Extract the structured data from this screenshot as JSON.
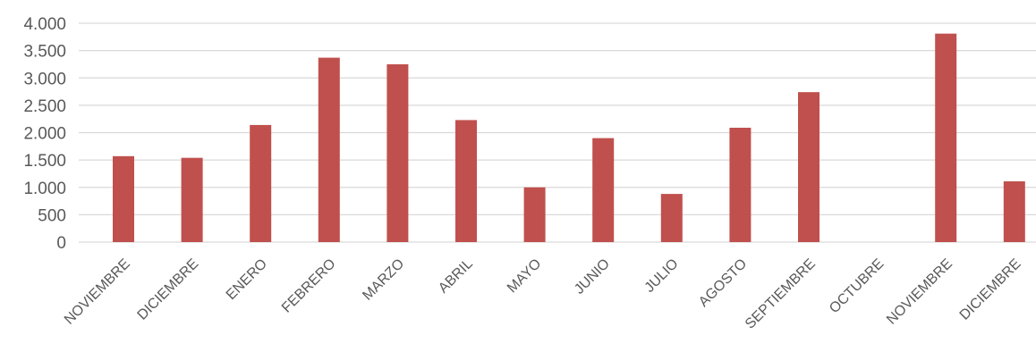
{
  "chart_data": {
    "type": "bar",
    "title": "",
    "xlabel": "",
    "ylabel": "",
    "ylim": [
      0,
      4000
    ],
    "grid": true,
    "legend": "none",
    "color": "#c0504d",
    "categories": [
      "NOVIEMBRE",
      "DICIEMBRE",
      "ENERO",
      "FEBRERO",
      "MARZO",
      "ABRIL",
      "MAYO",
      "JUNIO",
      "JULIO",
      "AGOSTO",
      "SEPTIEMBRE",
      "OCTUBRE",
      "NOVIEMBRE",
      "DICIEMBRE"
    ],
    "values": [
      1570,
      1540,
      2140,
      3370,
      3250,
      2230,
      1000,
      1900,
      880,
      2090,
      2740,
      0,
      3810,
      1110
    ],
    "y_ticks": [
      {
        "value": 0,
        "label": "0"
      },
      {
        "value": 500,
        "label": "500"
      },
      {
        "value": 1000,
        "label": "1.000"
      },
      {
        "value": 1500,
        "label": "1.500"
      },
      {
        "value": 2000,
        "label": "2.000"
      },
      {
        "value": 2500,
        "label": "2.500"
      },
      {
        "value": 3000,
        "label": "3.000"
      },
      {
        "value": 3500,
        "label": "3.500"
      },
      {
        "value": 4000,
        "label": "4.000"
      }
    ]
  }
}
